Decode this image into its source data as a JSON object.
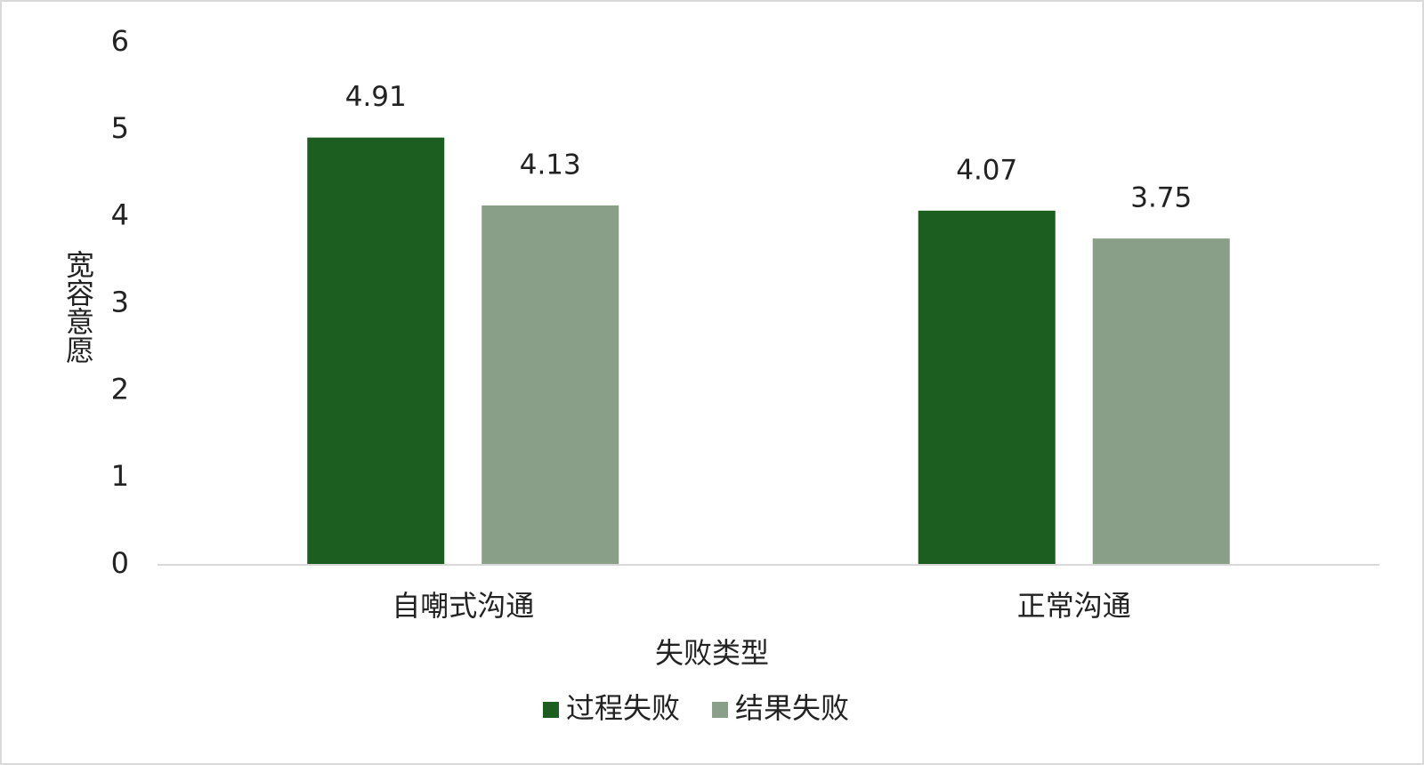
{
  "chart_data": {
    "type": "bar",
    "x_label": "失败类型",
    "y_label": "宽容意愿",
    "categories": [
      "自嘲式沟通",
      "正常沟通"
    ],
    "series": [
      {
        "name": "过程失败",
        "color": "#1b5e20",
        "values": [
          4.91,
          4.07
        ]
      },
      {
        "name": "结果失败",
        "color": "#8a9f88",
        "values": [
          4.13,
          3.75
        ]
      }
    ],
    "ylim": [
      0,
      6
    ],
    "yticks": [
      0,
      1,
      2,
      3,
      4,
      5,
      6
    ],
    "grid": false,
    "legend": "bottom"
  }
}
